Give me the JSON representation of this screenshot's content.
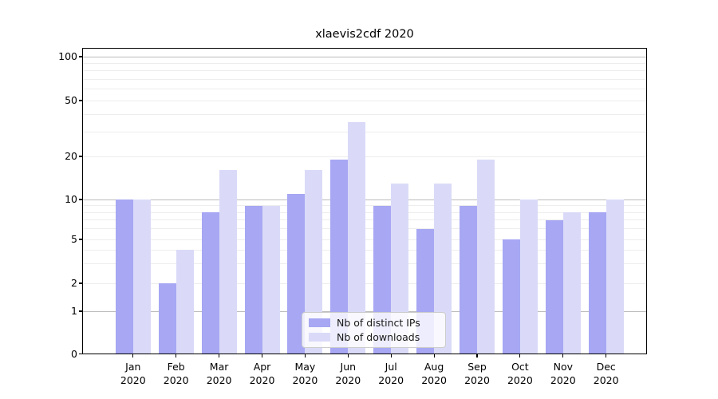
{
  "title": "xlaevis2cdf 2020",
  "chart_data": {
    "type": "bar",
    "title": "xlaevis2cdf 2020",
    "categories": [
      "Jan 2020",
      "Feb 2020",
      "Mar 2020",
      "Apr 2020",
      "May 2020",
      "Jun 2020",
      "Jul 2020",
      "Aug 2020",
      "Sep 2020",
      "Oct 2020",
      "Nov 2020",
      "Dec 2020"
    ],
    "month_line1": [
      "Jan",
      "Feb",
      "Mar",
      "Apr",
      "May",
      "Jun",
      "Jul",
      "Aug",
      "Sep",
      "Oct",
      "Nov",
      "Dec"
    ],
    "month_line2": "2020",
    "series": [
      {
        "name": "Nb of distinct IPs",
        "color": "#a7a7f4",
        "values": [
          10,
          2,
          8,
          9,
          11,
          19,
          9,
          6,
          9,
          5,
          7,
          8
        ]
      },
      {
        "name": "Nb of downloads",
        "color": "#dadaf8",
        "values": [
          10,
          4,
          16,
          9,
          16,
          35,
          13,
          13,
          19,
          10,
          8,
          10
        ]
      }
    ],
    "yscale": "log-like (0 shown at baseline)",
    "ytick_values": [
      0,
      1,
      2,
      5,
      10,
      20,
      50,
      100
    ],
    "ytick_labels": [
      "0",
      "1",
      "2",
      "5",
      "10",
      "20",
      "50",
      "100"
    ],
    "minor_grid_values": [
      2,
      3,
      4,
      5,
      6,
      7,
      8,
      9,
      20,
      30,
      40,
      50,
      60,
      70,
      80,
      90
    ],
    "major_grid_values": [
      1,
      10,
      100
    ],
    "ylim": [
      0,
      115
    ],
    "xlabel": "",
    "ylabel": "",
    "grid": true,
    "legend_position": "lower center",
    "colors": {
      "bar_dark": "#a7a7f4",
      "bar_light": "#dadaf8",
      "grid_minor": "#ededed",
      "grid_major": "#bcbcbc",
      "axis": "#000000",
      "legend_border": "#cccccc"
    }
  }
}
